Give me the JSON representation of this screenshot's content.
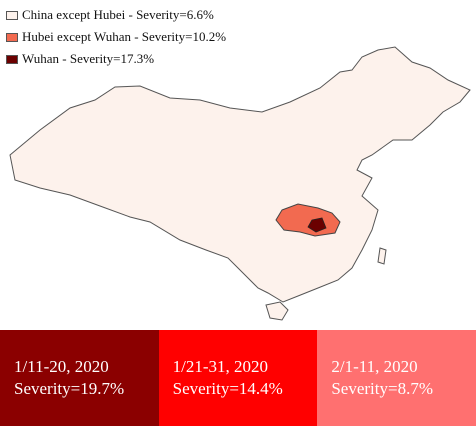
{
  "legend": [
    {
      "label": "China except Hubei - Severity=6.6%",
      "color": "#fdf2ec"
    },
    {
      "label": "Hubei except Wuhan - Severity=10.2%",
      "color": "#f26a50"
    },
    {
      "label": "Wuhan - Severity=17.3%",
      "color": "#6b0000"
    }
  ],
  "periods": [
    {
      "dates": "1/11-20, 2020",
      "severity": "Severity=19.7%",
      "color": "#8b0000"
    },
    {
      "dates": "1/21-31, 2020",
      "severity": "Severity=14.4%",
      "color": "#ff0000"
    },
    {
      "dates": "2/1-11, 2020",
      "severity": "Severity=8.7%",
      "color": "#ff7070"
    }
  ]
}
